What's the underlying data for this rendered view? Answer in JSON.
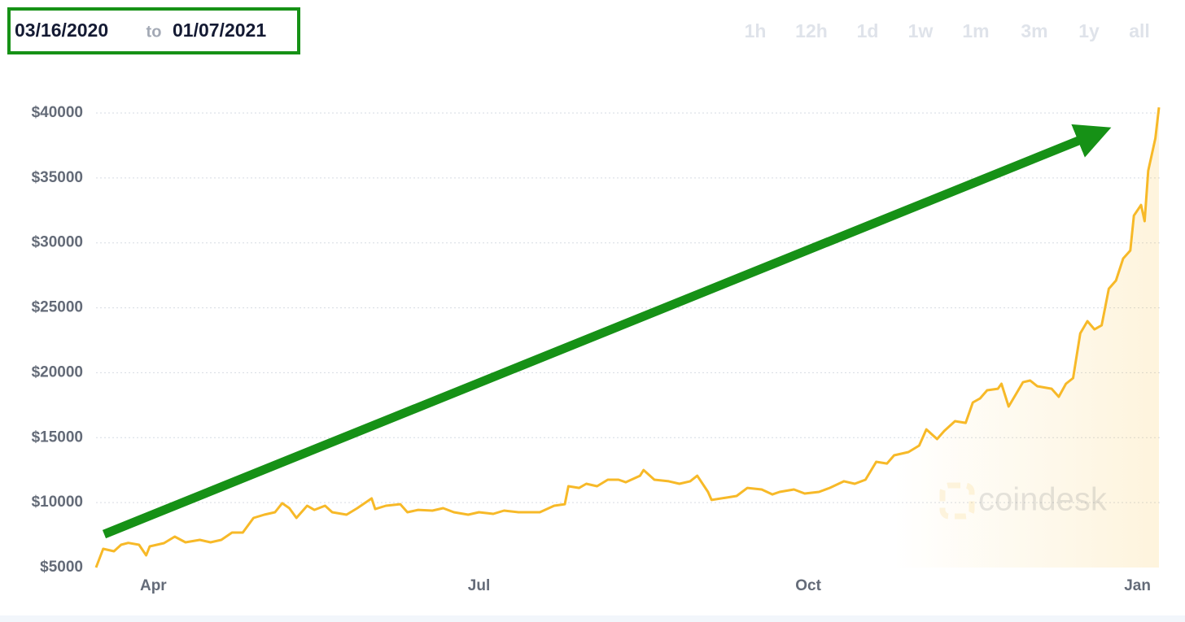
{
  "date_range": {
    "from": "03/16/2020",
    "separator": "to",
    "to": "01/07/2021"
  },
  "time_buttons": [
    "1h",
    "12h",
    "1d",
    "1w",
    "1m",
    "3m",
    "1y",
    "all"
  ],
  "watermark": "coindesk",
  "chart_data": {
    "type": "line",
    "color": "#f7b928",
    "grid": true,
    "x": [
      0,
      2,
      5,
      7,
      9,
      12,
      14,
      15,
      19,
      22,
      25,
      29,
      32,
      35,
      38,
      41,
      44,
      47,
      50,
      52,
      54,
      56,
      59,
      61,
      64,
      66,
      70,
      73,
      77,
      78,
      81,
      85,
      87,
      90,
      94,
      97,
      100,
      104,
      107,
      111,
      114,
      118,
      121,
      124,
      128,
      131,
      132,
      135,
      137,
      140,
      143,
      146,
      148,
      152,
      153,
      156,
      160,
      163,
      166,
      168,
      171,
      172,
      176,
      179,
      182,
      186,
      189,
      191,
      195,
      198,
      202,
      205,
      209,
      212,
      215,
      218,
      221,
      223,
      227,
      230,
      232,
      235,
      237,
      240,
      243,
      245,
      247,
      249,
      252,
      253,
      255,
      257,
      259,
      261,
      263,
      267,
      269,
      271,
      273,
      275,
      277,
      279,
      281,
      283,
      285,
      287,
      289,
      290,
      292,
      293,
      294,
      296,
      297
    ],
    "values": [
      5000,
      6440,
      6250,
      6750,
      6900,
      6750,
      5940,
      6630,
      6880,
      7380,
      6940,
      7130,
      6940,
      7130,
      7690,
      7690,
      8820,
      9070,
      9260,
      9950,
      9570,
      8820,
      9760,
      9440,
      9760,
      9260,
      9070,
      9570,
      10320,
      9500,
      9760,
      9880,
      9260,
      9440,
      9380,
      9570,
      9260,
      9070,
      9260,
      9130,
      9380,
      9260,
      9260,
      9260,
      9760,
      9880,
      11260,
      11130,
      11450,
      11260,
      11760,
      11760,
      11570,
      12070,
      12510,
      11760,
      11640,
      11450,
      11640,
      12070,
      10820,
      10200,
      10380,
      10510,
      11130,
      11010,
      10630,
      10820,
      11010,
      10700,
      10820,
      11130,
      11640,
      11450,
      11760,
      13140,
      13010,
      13640,
      13890,
      14390,
      15640,
      14890,
      15520,
      16270,
      16140,
      17710,
      18020,
      18650,
      18770,
      19150,
      17400,
      18330,
      19270,
      19400,
      18960,
      18770,
      18150,
      19150,
      19590,
      23030,
      23970,
      23340,
      23650,
      26470,
      27100,
      28790,
      29410,
      32100,
      32920,
      31670,
      35550,
      38050,
      40430
    ],
    "xlim": [
      0,
      297
    ],
    "xticks": [
      {
        "value": 16,
        "label": "Apr"
      },
      {
        "value": 107,
        "label": "Jul"
      },
      {
        "value": 199,
        "label": "Oct"
      },
      {
        "value": 291,
        "label": "Jan"
      }
    ],
    "ylim": [
      5000,
      40000
    ],
    "yticks": [
      {
        "value": 5000,
        "label": "$5000"
      },
      {
        "value": 10000,
        "label": "$10000"
      },
      {
        "value": 15000,
        "label": "$15000"
      },
      {
        "value": 20000,
        "label": "$20000"
      },
      {
        "value": 25000,
        "label": "$25000"
      },
      {
        "value": 30000,
        "label": "$30000"
      },
      {
        "value": 35000,
        "label": "$35000"
      },
      {
        "value": 40000,
        "label": "$40000"
      }
    ]
  }
}
